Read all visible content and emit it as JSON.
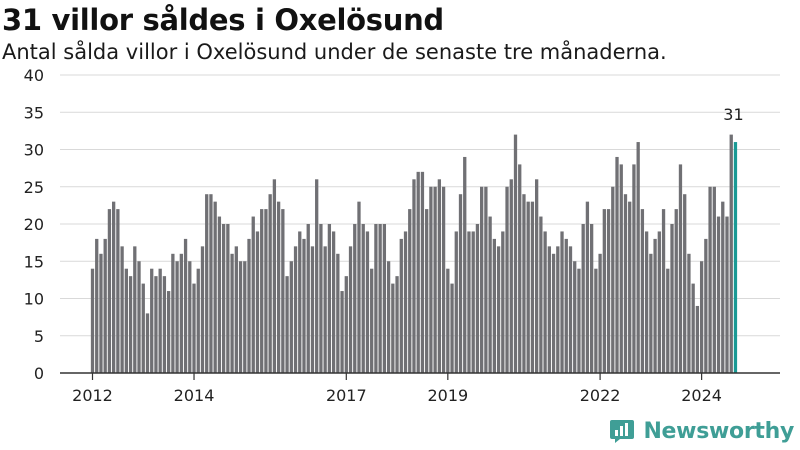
{
  "header": {
    "title": "31 villor såldes i Oxelösund",
    "subtitle": "Antal sålda villor i Oxelösund under de senaste tre månaderna."
  },
  "brand": {
    "name": "Newsworthy",
    "logo_icon": "newsworthy-logo-icon",
    "color": "#3f9e96"
  },
  "colors": {
    "bar": "#707074",
    "highlight": "#1a9a95",
    "grid": "#d9d9d9"
  },
  "chart_data": {
    "type": "bar",
    "title": "31 villor såldes i Oxelösund",
    "subtitle": "Antal sålda villor i Oxelösund under de senaste tre månaderna.",
    "ylim": [
      0,
      40
    ],
    "yticks": [
      0,
      5,
      10,
      15,
      20,
      25,
      30,
      35,
      40
    ],
    "grid": true,
    "x_start": "2012-01",
    "xtick_labels": [
      {
        "label": "2012",
        "index": 0
      },
      {
        "label": "2014",
        "index": 24
      },
      {
        "label": "2017",
        "index": 60
      },
      {
        "label": "2019",
        "index": 84
      },
      {
        "label": "2022",
        "index": 120
      },
      {
        "label": "2024",
        "index": 144
      }
    ],
    "values": [
      14,
      18,
      16,
      18,
      22,
      23,
      22,
      17,
      14,
      13,
      17,
      15,
      12,
      8,
      14,
      13,
      14,
      13,
      11,
      16,
      15,
      16,
      18,
      15,
      12,
      14,
      17,
      24,
      24,
      23,
      21,
      20,
      20,
      16,
      17,
      15,
      15,
      18,
      21,
      19,
      22,
      22,
      24,
      26,
      23,
      22,
      13,
      15,
      17,
      19,
      18,
      20,
      17,
      26,
      20,
      17,
      20,
      19,
      16,
      11,
      13,
      17,
      20,
      23,
      20,
      19,
      14,
      20,
      20,
      20,
      15,
      12,
      13,
      18,
      19,
      22,
      26,
      27,
      27,
      22,
      25,
      25,
      26,
      25,
      14,
      12,
      19,
      24,
      29,
      19,
      19,
      20,
      25,
      25,
      21,
      18,
      17,
      19,
      25,
      26,
      32,
      28,
      24,
      23,
      23,
      26,
      21,
      19,
      17,
      16,
      17,
      19,
      18,
      17,
      15,
      14,
      20,
      23,
      20,
      14,
      16,
      22,
      22,
      25,
      29,
      28,
      24,
      23,
      28,
      31,
      22,
      19,
      16,
      18,
      19,
      22,
      14,
      20,
      22,
      28,
      24,
      16,
      12,
      9,
      15,
      18,
      25,
      25,
      21,
      23,
      21,
      32,
      31
    ],
    "highlight_index": 152,
    "annotation": {
      "label": "31",
      "index": 152
    }
  }
}
